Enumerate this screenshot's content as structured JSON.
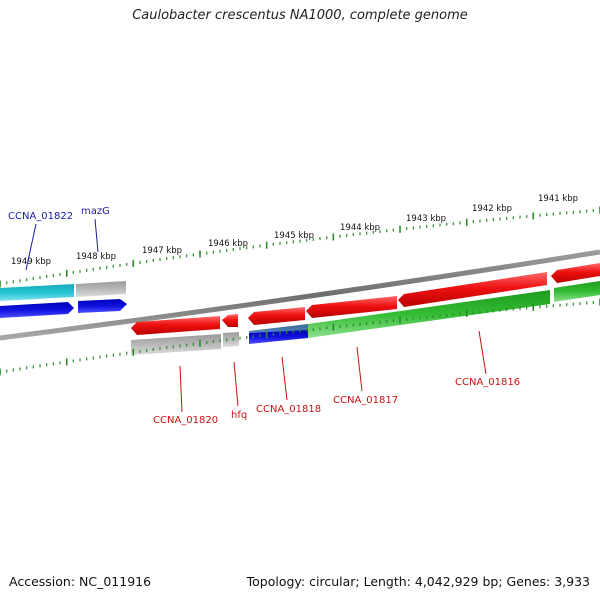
{
  "title": "Caulobacter crescentus NA1000, complete genome",
  "footer": {
    "accession": "Accession: NC_011916",
    "summary": "Topology: circular; Length: 4,042,929 bp; Genes: 3,933"
  },
  "colors": {
    "outer_tick": "#2a8a2a",
    "inner_tick": "#2a8a2a",
    "backbone": "#7a7a7a",
    "gene_red": "#ee1111",
    "gene_green": "#33bb33",
    "gene_grey": "#aaaaaa",
    "gene_cyan": "#22bbcc",
    "gene_blue": "#1111dd",
    "gene_steelblue": "#4477aa",
    "label_blue": "#1a1aa6",
    "label_red": "#cc1111"
  },
  "kbp_ticks": [
    {
      "label": "1949 kbp"
    },
    {
      "label": "1948 kbp"
    },
    {
      "label": "1947 kbp"
    },
    {
      "label": "1946 kbp"
    },
    {
      "label": "1945 kbp"
    },
    {
      "label": "1944 kbp"
    },
    {
      "label": "1943 kbp"
    },
    {
      "label": "1942 kbp"
    },
    {
      "label": "1941 kbp"
    }
  ],
  "gene_labels": [
    {
      "text": "CCNA_01822",
      "color": "blue"
    },
    {
      "text": "mazG",
      "color": "blue"
    },
    {
      "text": "CCNA_01820",
      "color": "red"
    },
    {
      "text": "hfq",
      "color": "red"
    },
    {
      "text": "CCNA_01818",
      "color": "red"
    },
    {
      "text": "CCNA_01817",
      "color": "red"
    },
    {
      "text": "CCNA_01816",
      "color": "red"
    }
  ]
}
